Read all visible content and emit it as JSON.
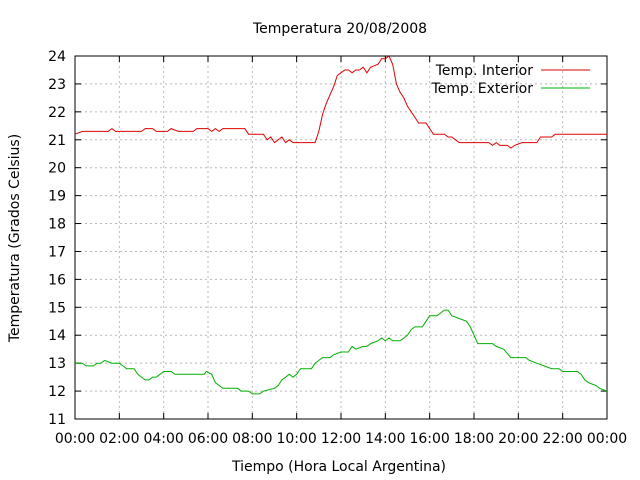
{
  "chart_data": {
    "type": "line",
    "title": "Temperatura 20/08/2008",
    "xlabel": "Tiempo (Hora Local Argentina)",
    "ylabel": "Temperatura (Grados Celsius)",
    "ylim": [
      11,
      24
    ],
    "xlim": [
      "00:00",
      "24:00"
    ],
    "grid": true,
    "legend_position": "top-right",
    "x_tick_labels": [
      "00:00",
      "02:00",
      "04:00",
      "06:00",
      "08:00",
      "10:00",
      "12:00",
      "14:00",
      "16:00",
      "18:00",
      "20:00",
      "22:00",
      "00:00"
    ],
    "y_tick_labels": [
      "11",
      "12",
      "13",
      "14",
      "15",
      "16",
      "17",
      "18",
      "19",
      "20",
      "21",
      "22",
      "23",
      "24"
    ],
    "series": [
      {
        "name": "Temp. Interior",
        "color": "#e00000",
        "points": [
          [
            "00:00",
            21.2
          ],
          [
            "00:20",
            21.3
          ],
          [
            "01:30",
            21.3
          ],
          [
            "01:40",
            21.4
          ],
          [
            "01:50",
            21.3
          ],
          [
            "03:00",
            21.3
          ],
          [
            "03:10",
            21.4
          ],
          [
            "03:30",
            21.4
          ],
          [
            "03:40",
            21.3
          ],
          [
            "04:10",
            21.3
          ],
          [
            "04:20",
            21.4
          ],
          [
            "04:40",
            21.3
          ],
          [
            "05:20",
            21.3
          ],
          [
            "05:30",
            21.4
          ],
          [
            "06:00",
            21.4
          ],
          [
            "06:10",
            21.3
          ],
          [
            "06:20",
            21.4
          ],
          [
            "06:30",
            21.3
          ],
          [
            "06:40",
            21.4
          ],
          [
            "07:40",
            21.4
          ],
          [
            "07:50",
            21.2
          ],
          [
            "08:30",
            21.2
          ],
          [
            "08:40",
            21.0
          ],
          [
            "08:50",
            21.1
          ],
          [
            "09:00",
            20.9
          ],
          [
            "09:20",
            21.1
          ],
          [
            "09:30",
            20.9
          ],
          [
            "09:40",
            21.0
          ],
          [
            "09:50",
            20.9
          ],
          [
            "10:50",
            20.9
          ],
          [
            "11:00",
            21.3
          ],
          [
            "11:10",
            21.9
          ],
          [
            "11:20",
            22.3
          ],
          [
            "11:30",
            22.6
          ],
          [
            "11:40",
            22.9
          ],
          [
            "11:50",
            23.3
          ],
          [
            "12:00",
            23.4
          ],
          [
            "12:10",
            23.5
          ],
          [
            "12:20",
            23.5
          ],
          [
            "12:30",
            23.4
          ],
          [
            "12:40",
            23.5
          ],
          [
            "12:50",
            23.5
          ],
          [
            "13:00",
            23.6
          ],
          [
            "13:10",
            23.4
          ],
          [
            "13:20",
            23.6
          ],
          [
            "13:40",
            23.7
          ],
          [
            "13:50",
            23.9
          ],
          [
            "14:00",
            23.9
          ],
          [
            "14:10",
            24.0
          ],
          [
            "14:20",
            23.7
          ],
          [
            "14:30",
            23.0
          ],
          [
            "14:40",
            22.7
          ],
          [
            "14:50",
            22.5
          ],
          [
            "15:00",
            22.2
          ],
          [
            "15:10",
            22.0
          ],
          [
            "15:20",
            21.8
          ],
          [
            "15:30",
            21.6
          ],
          [
            "15:50",
            21.6
          ],
          [
            "16:00",
            21.4
          ],
          [
            "16:10",
            21.2
          ],
          [
            "16:40",
            21.2
          ],
          [
            "16:50",
            21.1
          ],
          [
            "17:00",
            21.1
          ],
          [
            "17:10",
            21.0
          ],
          [
            "17:20",
            20.9
          ],
          [
            "18:40",
            20.9
          ],
          [
            "18:50",
            20.8
          ],
          [
            "19:00",
            20.9
          ],
          [
            "19:10",
            20.8
          ],
          [
            "19:30",
            20.8
          ],
          [
            "19:40",
            20.7
          ],
          [
            "19:50",
            20.8
          ],
          [
            "20:10",
            20.9
          ],
          [
            "20:50",
            20.9
          ],
          [
            "21:00",
            21.1
          ],
          [
            "21:30",
            21.1
          ],
          [
            "21:40",
            21.2
          ],
          [
            "24:00",
            21.2
          ]
        ]
      },
      {
        "name": "Temp. Exterior",
        "color": "#00b000",
        "points": [
          [
            "00:00",
            13.0
          ],
          [
            "00:20",
            13.0
          ],
          [
            "00:30",
            12.9
          ],
          [
            "00:50",
            12.9
          ],
          [
            "01:00",
            13.0
          ],
          [
            "01:10",
            13.0
          ],
          [
            "01:20",
            13.1
          ],
          [
            "01:40",
            13.0
          ],
          [
            "02:00",
            13.0
          ],
          [
            "02:10",
            12.9
          ],
          [
            "02:20",
            12.8
          ],
          [
            "02:40",
            12.8
          ],
          [
            "02:50",
            12.6
          ],
          [
            "03:00",
            12.5
          ],
          [
            "03:10",
            12.4
          ],
          [
            "03:20",
            12.4
          ],
          [
            "03:30",
            12.5
          ],
          [
            "03:40",
            12.5
          ],
          [
            "03:50",
            12.6
          ],
          [
            "04:00",
            12.7
          ],
          [
            "04:20",
            12.7
          ],
          [
            "04:30",
            12.6
          ],
          [
            "05:50",
            12.6
          ],
          [
            "05:55",
            12.7
          ],
          [
            "06:10",
            12.6
          ],
          [
            "06:20",
            12.3
          ],
          [
            "06:30",
            12.2
          ],
          [
            "06:40",
            12.1
          ],
          [
            "07:20",
            12.1
          ],
          [
            "07:30",
            12.0
          ],
          [
            "07:50",
            12.0
          ],
          [
            "08:00",
            11.9
          ],
          [
            "08:20",
            11.9
          ],
          [
            "08:30",
            12.0
          ],
          [
            "09:00",
            12.1
          ],
          [
            "09:10",
            12.2
          ],
          [
            "09:20",
            12.4
          ],
          [
            "09:30",
            12.5
          ],
          [
            "09:40",
            12.6
          ],
          [
            "09:50",
            12.5
          ],
          [
            "10:00",
            12.6
          ],
          [
            "10:10",
            12.8
          ],
          [
            "10:40",
            12.8
          ],
          [
            "10:50",
            13.0
          ],
          [
            "11:00",
            13.1
          ],
          [
            "11:10",
            13.2
          ],
          [
            "11:30",
            13.2
          ],
          [
            "11:40",
            13.3
          ],
          [
            "12:00",
            13.4
          ],
          [
            "12:20",
            13.4
          ],
          [
            "12:30",
            13.6
          ],
          [
            "12:40",
            13.5
          ],
          [
            "13:00",
            13.6
          ],
          [
            "13:10",
            13.6
          ],
          [
            "13:20",
            13.7
          ],
          [
            "13:40",
            13.8
          ],
          [
            "13:50",
            13.9
          ],
          [
            "14:00",
            13.8
          ],
          [
            "14:10",
            13.9
          ],
          [
            "14:20",
            13.8
          ],
          [
            "14:40",
            13.8
          ],
          [
            "14:50",
            13.9
          ],
          [
            "15:00",
            14.0
          ],
          [
            "15:10",
            14.2
          ],
          [
            "15:20",
            14.3
          ],
          [
            "15:40",
            14.3
          ],
          [
            "15:50",
            14.5
          ],
          [
            "16:00",
            14.7
          ],
          [
            "16:20",
            14.7
          ],
          [
            "16:30",
            14.8
          ],
          [
            "16:40",
            14.9
          ],
          [
            "16:50",
            14.9
          ],
          [
            "17:00",
            14.7
          ],
          [
            "17:20",
            14.6
          ],
          [
            "17:40",
            14.5
          ],
          [
            "17:50",
            14.3
          ],
          [
            "18:00",
            14.0
          ],
          [
            "18:10",
            13.7
          ],
          [
            "18:50",
            13.7
          ],
          [
            "19:00",
            13.6
          ],
          [
            "19:20",
            13.5
          ],
          [
            "19:40",
            13.2
          ],
          [
            "20:20",
            13.2
          ],
          [
            "20:30",
            13.1
          ],
          [
            "20:50",
            13.0
          ],
          [
            "21:10",
            12.9
          ],
          [
            "21:30",
            12.8
          ],
          [
            "21:50",
            12.8
          ],
          [
            "22:00",
            12.7
          ],
          [
            "22:20",
            12.7
          ],
          [
            "22:40",
            12.7
          ],
          [
            "22:50",
            12.6
          ],
          [
            "23:00",
            12.4
          ],
          [
            "23:10",
            12.3
          ],
          [
            "23:30",
            12.2
          ],
          [
            "23:40",
            12.1
          ],
          [
            "24:00",
            12.0
          ]
        ]
      }
    ]
  }
}
